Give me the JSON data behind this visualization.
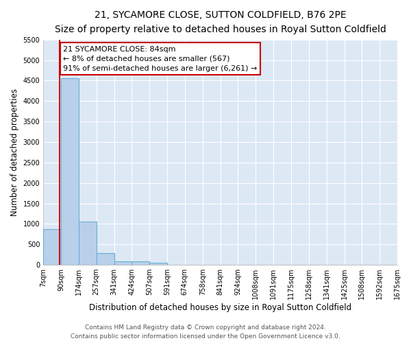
{
  "title": "21, SYCAMORE CLOSE, SUTTON COLDFIELD, B76 2PE",
  "subtitle": "Size of property relative to detached houses in Royal Sutton Coldfield",
  "xlabel": "Distribution of detached houses by size in Royal Sutton Coldfield",
  "ylabel": "Number of detached properties",
  "bin_edges": [
    7,
    90,
    174,
    257,
    341,
    424,
    507,
    591,
    674,
    758,
    841,
    924,
    1008,
    1091,
    1175,
    1258,
    1341,
    1425,
    1508,
    1592,
    1675
  ],
  "bar_heights": [
    880,
    4560,
    1060,
    290,
    90,
    80,
    50,
    0,
    0,
    0,
    0,
    0,
    0,
    0,
    0,
    0,
    0,
    0,
    0,
    0
  ],
  "bar_color": "#b8d0ea",
  "bar_edgecolor": "#6aaed6",
  "property_line_x": 84,
  "property_line_color": "#cc0000",
  "annotation_text": "21 SYCAMORE CLOSE: 84sqm\n← 8% of detached houses are smaller (567)\n91% of semi-detached houses are larger (6,261) →",
  "annotation_box_color": "#cc0000",
  "ylim": [
    0,
    5500
  ],
  "yticks": [
    0,
    500,
    1000,
    1500,
    2000,
    2500,
    3000,
    3500,
    4000,
    4500,
    5000,
    5500
  ],
  "background_color": "#dde8f5",
  "footer_line1": "Contains HM Land Registry data © Crown copyright and database right 2024.",
  "footer_line2": "Contains public sector information licensed under the Open Government Licence v3.0.",
  "title_fontsize": 10,
  "subtitle_fontsize": 9,
  "xlabel_fontsize": 8.5,
  "ylabel_fontsize": 8.5,
  "tick_fontsize": 7,
  "footer_fontsize": 6.5,
  "annot_fontsize": 8
}
